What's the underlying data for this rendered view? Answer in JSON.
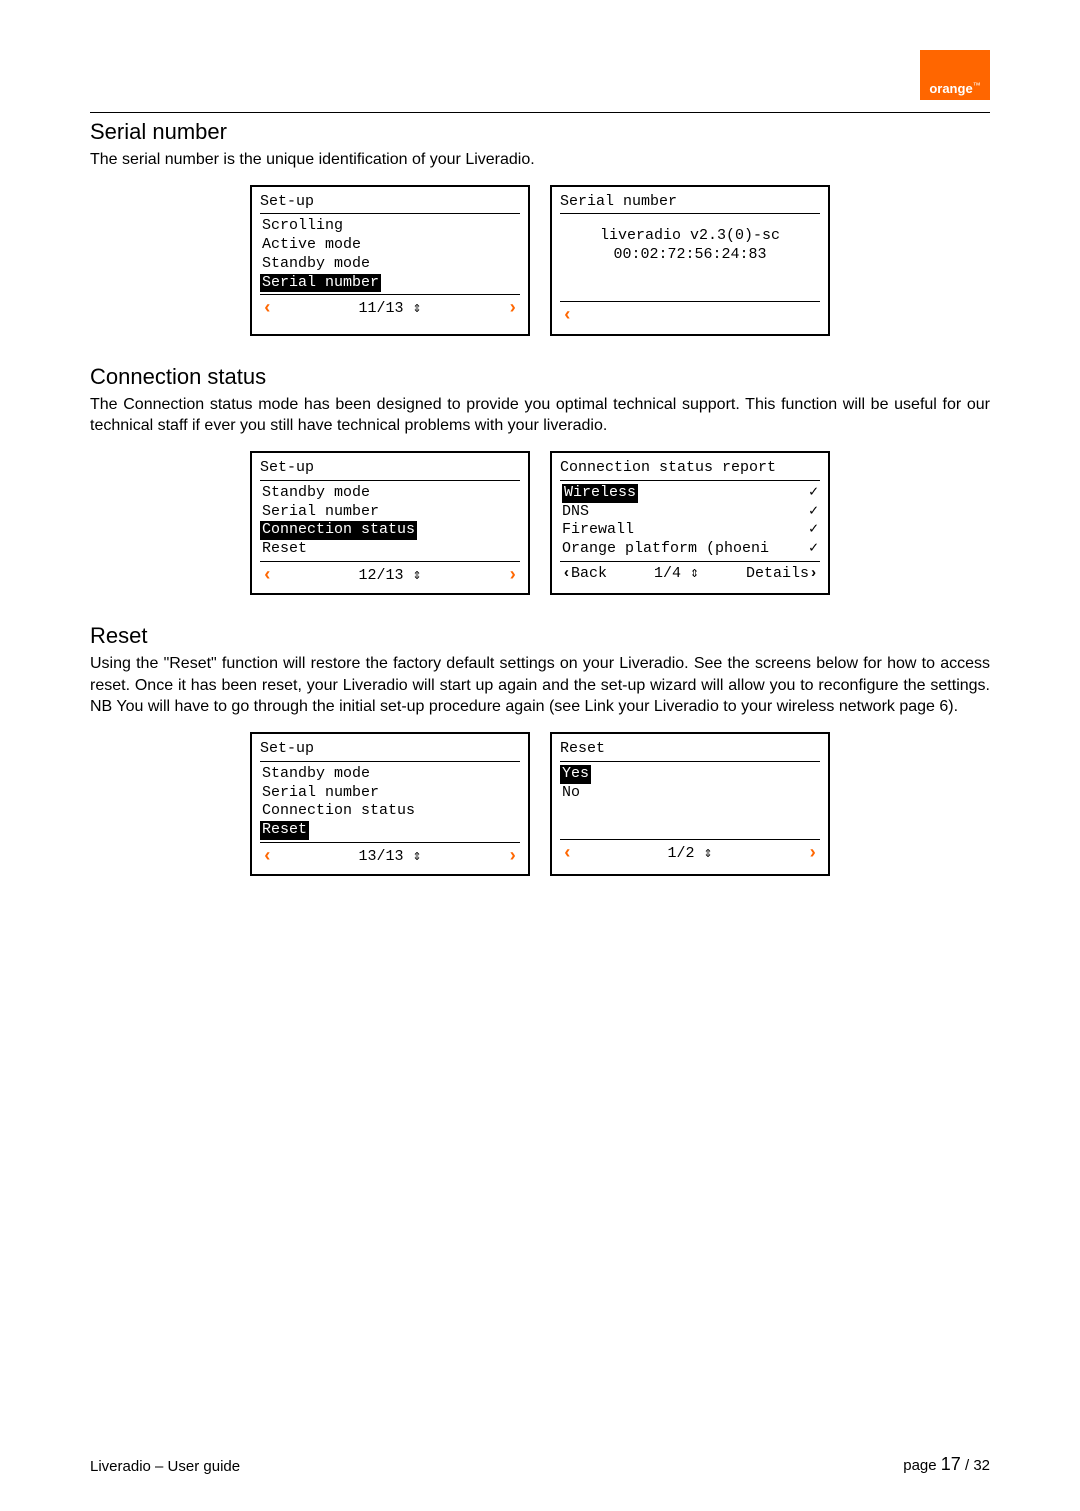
{
  "brand": {
    "name": "orange",
    "tm": "™"
  },
  "sections": {
    "serial": {
      "heading": "Serial number",
      "text": "The serial number is the unique identification of your Liveradio.",
      "screen_left": {
        "title": "Set-up",
        "items": [
          "Scrolling",
          "Active mode",
          "Standby mode",
          "Serial number"
        ],
        "selected_index": 3,
        "footer_mid": "11/13 ⇕"
      },
      "screen_right": {
        "title": "Serial number",
        "line1": "liveradio v2.3(0)-sc",
        "line2": "00:02:72:56:24:83"
      }
    },
    "conn": {
      "heading": "Connection status",
      "text": "The Connection status mode has been designed to provide you optimal technical support. This function will be useful for our technical staff if ever you still have technical problems with your liveradio.",
      "screen_left": {
        "title": "Set-up",
        "items": [
          "Standby mode",
          "Serial number",
          "Connection status",
          "Reset"
        ],
        "selected_index": 2,
        "footer_mid": "12/13 ⇕"
      },
      "screen_right": {
        "title": "Connection status report",
        "rows": [
          {
            "label": "Wireless",
            "mark": "✓",
            "selected": true
          },
          {
            "label": "DNS",
            "mark": "✓",
            "selected": false
          },
          {
            "label": "Firewall",
            "mark": "✓",
            "selected": false
          },
          {
            "label": "Orange platform (phoeni",
            "mark": "✓",
            "selected": false
          }
        ],
        "footer_left": "Back",
        "footer_mid": "1/4 ⇕",
        "footer_right": "Details"
      }
    },
    "reset": {
      "heading": "Reset",
      "text": "Using the \"Reset\" function will restore the factory default settings on your Liveradio. See the screens below for how to access reset. Once it has been reset, your Liveradio will start up again and the set-up wizard will allow you to reconfigure the settings. NB You will have to go through the initial set-up procedure again (see Link your Liveradio to your wireless network page 6).",
      "screen_left": {
        "title": "Set-up",
        "items": [
          "Standby mode",
          "Serial number",
          "Connection status",
          "Reset"
        ],
        "selected_index": 3,
        "footer_mid": "13/13 ⇕"
      },
      "screen_right": {
        "title": "Reset",
        "items": [
          "Yes",
          "No"
        ],
        "selected_index": 0,
        "footer_mid": "1/2 ⇕"
      }
    }
  },
  "footer": {
    "left": "Liveradio – User guide",
    "page_label": "page ",
    "page_current": "17",
    "page_total": " / 32"
  },
  "arrows": {
    "left": "‹",
    "right": "›"
  }
}
